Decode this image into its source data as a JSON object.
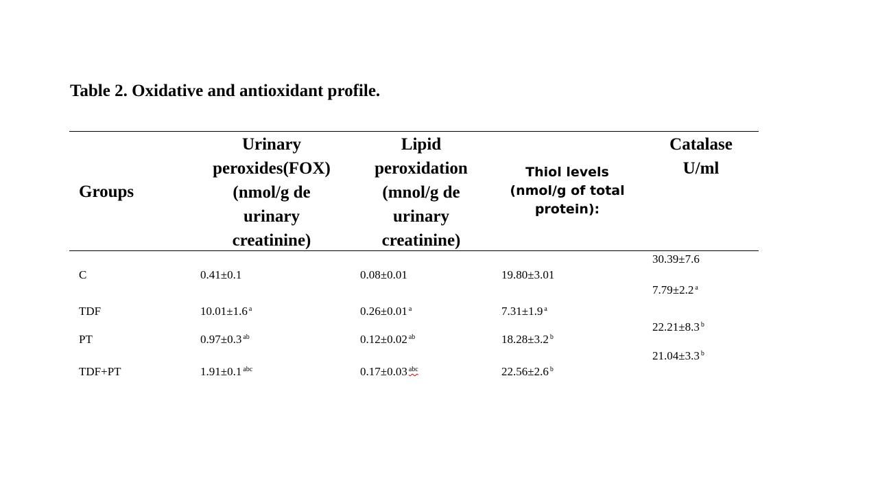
{
  "title": "Table 2. Oxidative and antioxidant profile.",
  "headers": {
    "groups": "Groups",
    "fox": [
      "Urinary",
      "peroxides(FOX)",
      "(nmol/g de",
      "urinary",
      "creatinine)"
    ],
    "lipid": [
      "Lipid",
      "peroxidation",
      "(mnol/g de",
      "urinary",
      "creatinine)"
    ],
    "thiol": [
      "Thiol levels",
      "(nmol/g of total",
      "protein):"
    ],
    "catalase": [
      "Catalase",
      "U/ml"
    ]
  },
  "rows": [
    {
      "group": "C",
      "fox": {
        "value": "0.41±0.1",
        "sup": ""
      },
      "lipid": {
        "value": "0.08±0.01",
        "sup": ""
      },
      "thiol": {
        "value": "19.80±3.01",
        "sup": ""
      }
    },
    {
      "group": "TDF",
      "fox": {
        "value": "10.01±1.6",
        "sup": "a"
      },
      "lipid": {
        "value": "0.26±0.01",
        "sup": "a"
      },
      "thiol": {
        "value": "7.31±1.9",
        "sup": "a"
      }
    },
    {
      "group": "PT",
      "fox": {
        "value": "0.97±0.3",
        "sup": "ab"
      },
      "lipid": {
        "value": "0.12±0.02",
        "sup": "ab"
      },
      "thiol": {
        "value": "18.28±3.2",
        "sup": "b"
      }
    },
    {
      "group": "TDF+PT",
      "fox": {
        "value": "1.91±0.1",
        "sup": "abc"
      },
      "lipid": {
        "value": "0.17±0.03",
        "sup": "abc"
      },
      "thiol": {
        "value": "22.56±2.6",
        "sup": "b"
      }
    }
  ],
  "catalase_values": [
    {
      "value": "30.39±7.6",
      "sup": ""
    },
    {
      "value": "7.79±2.2",
      "sup": "a"
    },
    {
      "value": "22.21±8.3",
      "sup": "b"
    },
    {
      "value": "21.04±3.3",
      "sup": "b"
    }
  ],
  "colors": {
    "text": "#000000",
    "background": "#ffffff",
    "spellcheck_underline": "#d00000"
  }
}
